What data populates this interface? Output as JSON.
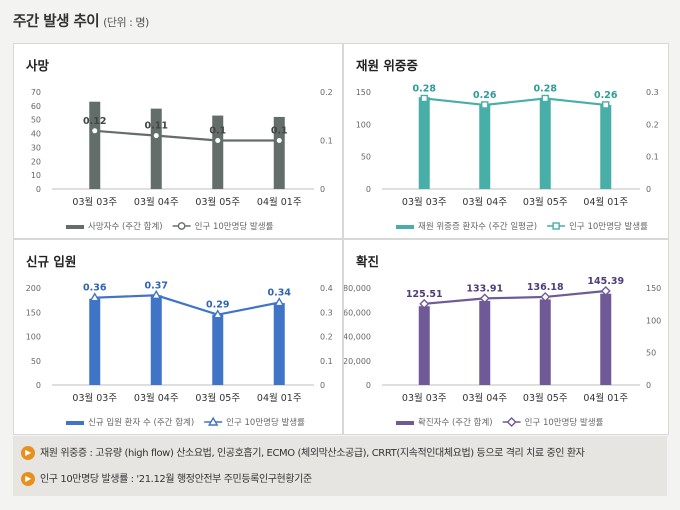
{
  "header": {
    "title": "주간 발생 추이",
    "unit": "(단위 : 명)"
  },
  "notes": [
    {
      "icon": "speaker-icon",
      "text": "재원 위중증 : 고유량 (high flow) 산소요법, 인공호흡기, ECMO (체외막산소공급), CRRT(지속적인대체요법) 등으로 격리 치료 중인 환자"
    },
    {
      "icon": "speaker-icon",
      "text": "인구 10만명당 발생률 : '21.12월 행정안전부 주민등록인구현황기준"
    }
  ],
  "chart_data": [
    {
      "type": "bar",
      "title": "사망",
      "categories": [
        "03월 03주",
        "03월 04주",
        "03월 05주",
        "04월 01주"
      ],
      "series": [
        {
          "name": "사망자수 (주간 합계)",
          "values": [
            63,
            58,
            53,
            52
          ],
          "axis": "left",
          "color": "#636e6b"
        },
        {
          "name": "인구 10만명당 발생률",
          "type": "line",
          "values": [
            0.12,
            0.11,
            0.1,
            0.1
          ],
          "labels": [
            "0.12",
            "0.11",
            "0.1",
            "0.1"
          ],
          "axis": "right",
          "color": "#636e6b",
          "marker": "circle"
        }
      ],
      "y_left": {
        "min": 0,
        "max": 70,
        "ticks": [
          "0",
          "10",
          "20",
          "30",
          "40",
          "50",
          "60",
          "70"
        ]
      },
      "y_right": {
        "min": 0,
        "max": 0.2,
        "ticks": [
          "0",
          "0.1",
          "0.2"
        ]
      },
      "label_color": "#444444"
    },
    {
      "type": "bar",
      "title": "재원 위중증",
      "categories": [
        "03월 03주",
        "03월 04주",
        "03월 05주",
        "04월 01주"
      ],
      "series": [
        {
          "name": "재원 위중증 환자수 (주간 일평균)",
          "values": [
            142,
            130,
            141,
            130
          ],
          "axis": "left",
          "color": "#48aea8"
        },
        {
          "name": "인구 10만명당 발생률",
          "type": "line",
          "values": [
            0.28,
            0.26,
            0.28,
            0.26
          ],
          "labels": [
            "0.28",
            "0.26",
            "0.28",
            "0.26"
          ],
          "axis": "right",
          "color": "#48aea8",
          "marker": "square"
        }
      ],
      "y_left": {
        "min": 0,
        "max": 150,
        "ticks": [
          "0",
          "50",
          "100",
          "150"
        ]
      },
      "y_right": {
        "min": 0,
        "max": 0.3,
        "ticks": [
          "0",
          "0.1",
          "0.2",
          "0.3"
        ]
      },
      "label_color": "#2e9c97"
    },
    {
      "type": "bar",
      "title": "신규 입원",
      "categories": [
        "03월 03주",
        "03월 04주",
        "03월 05주",
        "04월 01주"
      ],
      "series": [
        {
          "name": "신규 입원 환자 수 (주간 합계)",
          "values": [
            178,
            185,
            145,
            169
          ],
          "axis": "left",
          "color": "#3f74c7"
        },
        {
          "name": "인구 10만명당 발생률",
          "type": "line",
          "values": [
            0.36,
            0.37,
            0.29,
            0.34
          ],
          "labels": [
            "0.36",
            "0.37",
            "0.29",
            "0.34"
          ],
          "axis": "right",
          "color": "#3f74c7",
          "marker": "triangle"
        }
      ],
      "y_left": {
        "min": 0,
        "max": 200,
        "ticks": [
          "0",
          "50",
          "100",
          "150",
          "200"
        ]
      },
      "y_right": {
        "min": 0,
        "max": 0.4,
        "ticks": [
          "0",
          "0.1",
          "0.2",
          "0.3",
          "0.4"
        ]
      },
      "label_color": "#2f64b6"
    },
    {
      "type": "bar",
      "title": "확진",
      "categories": [
        "03월 03주",
        "03월 04주",
        "03월 05주",
        "04월 01주"
      ],
      "series": [
        {
          "name": "확진자수 (주간 합계)",
          "values": [
            65000,
            69400,
            70600,
            75300
          ],
          "axis": "left",
          "color": "#6f5a97"
        },
        {
          "name": "인구 10만명당 발생률",
          "type": "line",
          "values": [
            125.51,
            133.91,
            136.18,
            145.39
          ],
          "labels": [
            "125.51",
            "133.91",
            "136.18",
            "145.39"
          ],
          "axis": "right",
          "color": "#6f5a97",
          "marker": "diamond"
        }
      ],
      "y_left": {
        "min": 0,
        "max": 80000,
        "ticks": [
          "0",
          "20,000",
          "40,000",
          "60,000",
          "80,000"
        ]
      },
      "y_right": {
        "min": 0,
        "max": 150,
        "ticks": [
          "0",
          "50",
          "100",
          "150"
        ]
      },
      "label_color": "#4d3d78"
    }
  ]
}
